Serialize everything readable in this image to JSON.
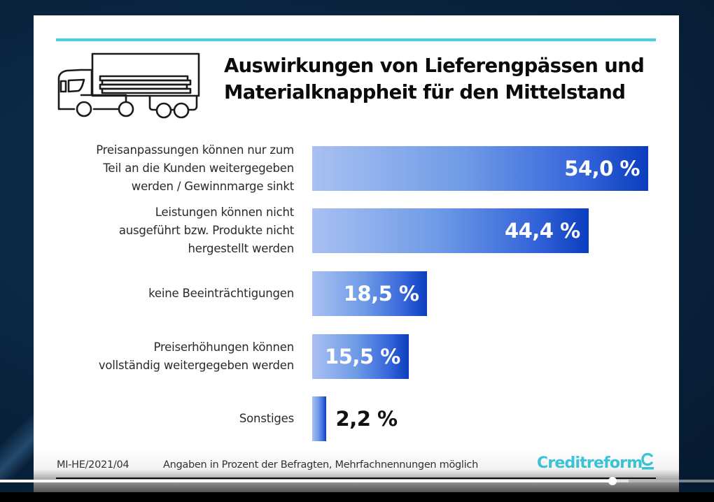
{
  "slide": {
    "title_lines": [
      "Auswirkungen von Lieferengpässen und",
      "Materialknappheit für den Mittelstand"
    ],
    "icon": "truck-icon",
    "accent_color": "#41d0e4",
    "bar_gradient": [
      "#a9c0f2",
      "#0b3dbe"
    ],
    "footer": {
      "code": "MI-HE/2021/04",
      "note": "Angaben in Prozent der Befragten, Mehrfachnennungen möglich",
      "logo": "Creditreform"
    }
  },
  "chart_data": {
    "type": "bar",
    "orientation": "horizontal",
    "title": "Auswirkungen von Lieferengpässen und Materialknappheit für den Mittelstand",
    "xlabel": "",
    "ylabel": "",
    "unit": "%",
    "xlim": [
      0,
      54
    ],
    "grid": false,
    "categories": [
      [
        "Preisanpassungen können nur zum",
        "Teil an die Kunden weitergegeben",
        "werden / Gewinnmarge sinkt"
      ],
      [
        "Leistungen können nicht",
        "ausgeführt bzw. Produkte nicht",
        "hergestellt werden"
      ],
      [
        "keine Beeinträchtigungen"
      ],
      [
        "Preiserhöhungen können",
        "vollständig weitergegeben werden"
      ],
      [
        "Sonstiges"
      ]
    ],
    "values": [
      54.0,
      44.4,
      18.5,
      15.5,
      2.2
    ],
    "value_labels": [
      "54,0 %",
      "44,4 %",
      "18,5 %",
      "15,5 %",
      "2,2 %"
    ],
    "footnote": "Angaben in Prozent der Befragten, Mehrfachnennungen möglich",
    "source": "MI-HE/2021/04"
  },
  "player": {
    "progress_played": 0.858,
    "progress_buffered": 0.88
  }
}
